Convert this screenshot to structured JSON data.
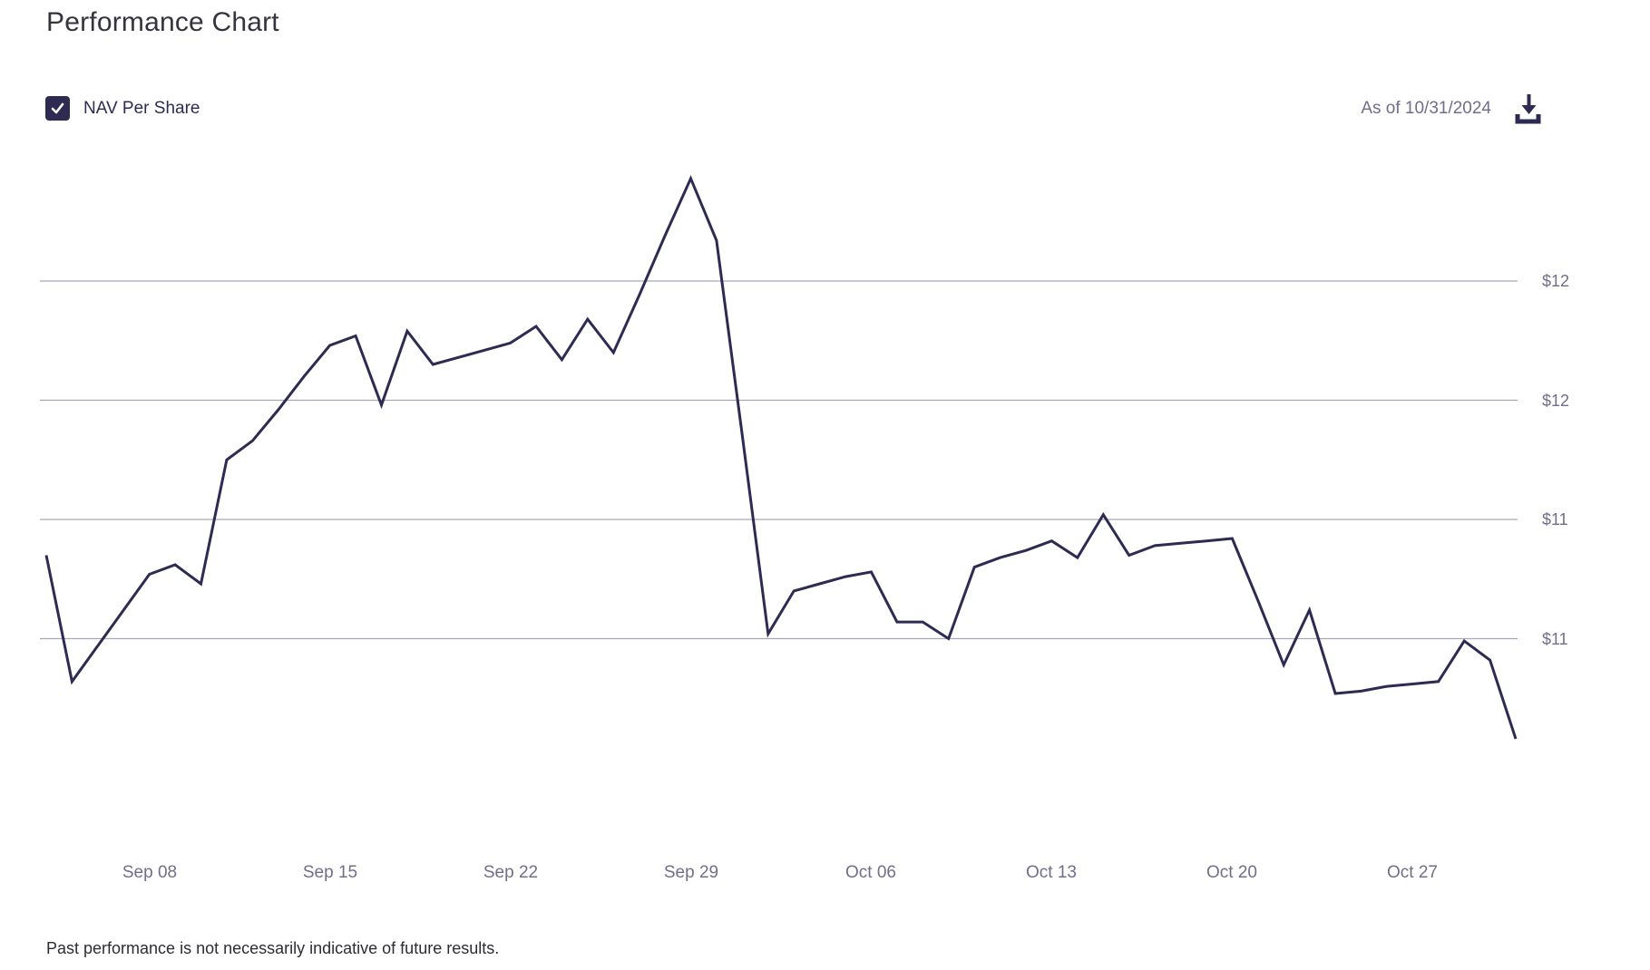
{
  "page": {
    "title": "Performance Chart",
    "footer": "Past performance is not necessarily indicative of future results."
  },
  "legend": {
    "label": "NAV Per Share",
    "checked": true
  },
  "as_of": {
    "text": "As of 10/31/2024"
  },
  "icons": {
    "download": "download-icon",
    "checkmark": "check-icon"
  },
  "colors": {
    "line": "#2e2b52",
    "gridline": "#a9a6ba",
    "axis_text": "#716e8a",
    "accent_dark": "#2e2b52",
    "title_text": "#35333d"
  },
  "chart_data": {
    "type": "line",
    "title": "Performance Chart",
    "legend_position": "top-left",
    "grid": "horizontal-only",
    "x": [
      "Sep 04",
      "Sep 05",
      "Sep 06",
      "Sep 07",
      "Sep 08",
      "Sep 09",
      "Sep 10",
      "Sep 11",
      "Sep 12",
      "Sep 13",
      "Sep 14",
      "Sep 15",
      "Sep 16",
      "Sep 17",
      "Sep 18",
      "Sep 19",
      "Sep 20",
      "Sep 21",
      "Sep 22",
      "Sep 23",
      "Sep 24",
      "Sep 25",
      "Sep 26",
      "Sep 27",
      "Sep 28",
      "Sep 29",
      "Sep 30",
      "Oct 01",
      "Oct 02",
      "Oct 03",
      "Oct 04",
      "Oct 05",
      "Oct 06",
      "Oct 07",
      "Oct 08",
      "Oct 09",
      "Oct 10",
      "Oct 11",
      "Oct 12",
      "Oct 13",
      "Oct 14",
      "Oct 15",
      "Oct 16",
      "Oct 17",
      "Oct 18",
      "Oct 19",
      "Oct 20",
      "Oct 21",
      "Oct 22",
      "Oct 23",
      "Oct 24",
      "Oct 25",
      "Oct 26",
      "Oct 27",
      "Oct 28",
      "Oct 29",
      "Oct 30",
      "Oct 31"
    ],
    "series": [
      {
        "name": "NAV Per Share",
        "values": [
          11.1,
          10.57,
          10.72,
          10.87,
          11.02,
          11.06,
          10.98,
          11.5,
          11.58,
          11.71,
          11.85,
          11.98,
          12.02,
          11.73,
          12.04,
          11.9,
          11.93,
          11.96,
          11.99,
          12.06,
          11.92,
          12.09,
          11.95,
          12.19,
          12.44,
          12.68,
          12.42,
          11.6,
          10.77,
          10.95,
          10.98,
          11.01,
          11.03,
          10.82,
          10.82,
          10.75,
          11.05,
          11.09,
          11.12,
          11.16,
          11.09,
          11.27,
          11.1,
          11.14,
          11.15,
          11.16,
          11.17,
          10.91,
          10.64,
          10.87,
          10.52,
          10.53,
          10.55,
          10.56,
          10.57,
          10.74,
          10.66,
          10.33
        ]
      }
    ],
    "x_tick_indices": [
      4,
      11,
      18,
      25,
      32,
      39,
      46,
      53
    ],
    "x_tick_labels": [
      "Sep 08",
      "Sep 15",
      "Sep 22",
      "Sep 29",
      "Oct 06",
      "Oct 13",
      "Oct 20",
      "Oct 27"
    ],
    "y_gridline_values": [
      12.25,
      11.75,
      11.25,
      10.75
    ],
    "y_tick_labels": [
      "$12",
      "$12",
      "$11",
      "$11"
    ],
    "ylim": [
      10.2,
      12.8
    ],
    "xlabel": "",
    "ylabel": ""
  }
}
